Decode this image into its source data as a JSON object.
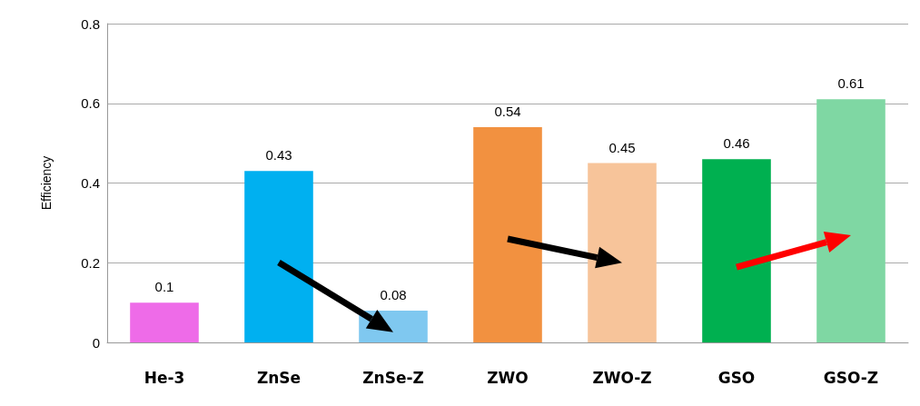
{
  "chart_data": {
    "type": "bar",
    "ylabel": "Efficiency",
    "categories": [
      "He-3",
      "ZnSe",
      "ZnSe-Z",
      "ZWO",
      "ZWO-Z",
      "GSO",
      "GSO-Z"
    ],
    "values": [
      0.1,
      0.43,
      0.08,
      0.54,
      0.45,
      0.46,
      0.61
    ],
    "colors": [
      "#ee6be8",
      "#00b0f0",
      "#7fc8f0",
      "#f29140",
      "#f7c49a",
      "#00b050",
      "#7fd7a3"
    ],
    "ylim": [
      0,
      0.8
    ],
    "yticks": [
      0,
      0.2,
      0.4,
      0.6,
      0.8
    ],
    "grid": "y",
    "data_labels": true
  }
}
